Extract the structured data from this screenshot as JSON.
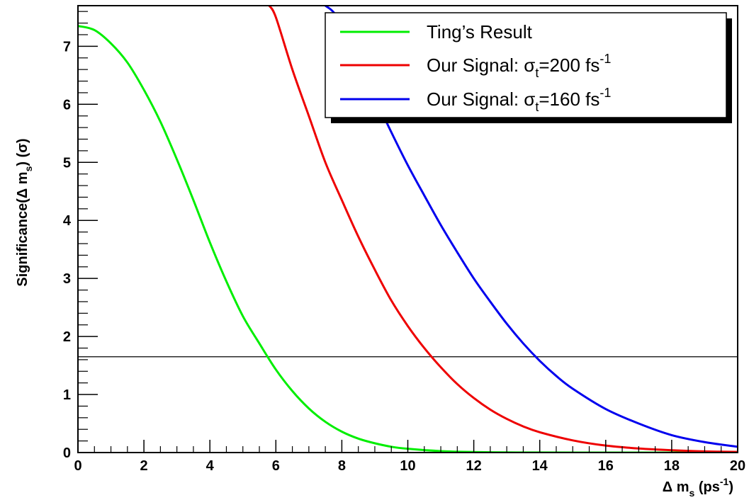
{
  "chart_data": {
    "type": "line",
    "xlabel": "Δ m_s (ps^-1)",
    "ylabel": "Significance(Δ m_s) (σ)",
    "xlim": [
      0,
      20
    ],
    "ylim": [
      0,
      7.7
    ],
    "x_ticks": [
      "0",
      "2",
      "4",
      "6",
      "8",
      "10",
      "12",
      "14",
      "16",
      "18",
      "20"
    ],
    "y_ticks": [
      "0",
      "1",
      "2",
      "3",
      "4",
      "5",
      "6",
      "7"
    ],
    "grid": false,
    "legend_position": "top-right",
    "reference_line": {
      "y": 1.65,
      "color": "#000000"
    },
    "series": [
      {
        "name": "Ting’s Result",
        "color": "#00ee00",
        "x": [
          0,
          0.5,
          1,
          1.5,
          2,
          2.5,
          3,
          3.5,
          4,
          4.5,
          5,
          5.5,
          6,
          6.5,
          7,
          7.5,
          8,
          8.5,
          9,
          9.5,
          10,
          11,
          12,
          13,
          14,
          16,
          18,
          20
        ],
        "y": [
          7.35,
          7.28,
          7.05,
          6.72,
          6.25,
          5.7,
          5.05,
          4.35,
          3.62,
          2.95,
          2.35,
          1.88,
          1.43,
          1.06,
          0.76,
          0.53,
          0.36,
          0.24,
          0.16,
          0.1,
          0.065,
          0.025,
          0.009,
          0.003,
          0.001,
          0.0,
          0.0,
          0.0
        ]
      },
      {
        "name": "Our Signal: σt=200 fs-1",
        "color": "#ee0000",
        "x": [
          5.8,
          6.0,
          6.5,
          7.0,
          7.5,
          8.0,
          8.5,
          9.0,
          9.5,
          10.0,
          10.5,
          11.0,
          11.5,
          12.0,
          12.5,
          13.0,
          13.5,
          14.0,
          15.0,
          16.0,
          17.0,
          18.0,
          19.0,
          20.0
        ],
        "y": [
          7.7,
          7.5,
          6.6,
          5.8,
          5.0,
          4.35,
          3.72,
          3.15,
          2.62,
          2.18,
          1.8,
          1.47,
          1.18,
          0.94,
          0.74,
          0.58,
          0.45,
          0.35,
          0.21,
          0.12,
          0.07,
          0.04,
          0.02,
          0.01
        ]
      },
      {
        "name": "Our Signal: σt=160 fs-1",
        "color": "#0000ee",
        "x": [
          7.5,
          7.8,
          8.2,
          8.6,
          9.0,
          9.5,
          10.0,
          10.5,
          11.0,
          11.5,
          12.0,
          12.5,
          13.0,
          13.5,
          14.0,
          14.5,
          15.0,
          16.0,
          17.0,
          18.0,
          19.0,
          20.0
        ],
        "y": [
          7.7,
          7.55,
          7.1,
          6.6,
          6.12,
          5.52,
          4.95,
          4.43,
          3.92,
          3.45,
          3.0,
          2.6,
          2.22,
          1.88,
          1.58,
          1.32,
          1.1,
          0.75,
          0.5,
          0.3,
          0.18,
          0.1
        ]
      }
    ],
    "legend": [
      {
        "label": "Ting’s Result",
        "color": "#00ee00"
      },
      {
        "label": "Our Signal: σt=200 fs-1",
        "color": "#ee0000"
      },
      {
        "label": "Our Signal: σt=160 fs-1",
        "color": "#0000ee"
      }
    ]
  }
}
